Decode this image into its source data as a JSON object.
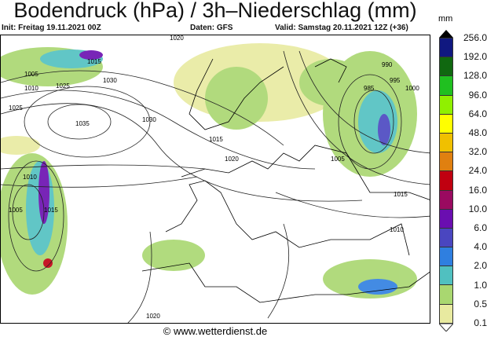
{
  "header": {
    "title": "Bodendruck (hPa) / 3h–Niederschlag (mm)",
    "init": "Init: Freitag 19.11.2021 00Z",
    "source": "Daten: GFS",
    "valid": "Valid: Samstag 20.11.2021 12Z (+36)"
  },
  "legend": {
    "unit": "mm",
    "labels": [
      "256.0",
      "192.0",
      "128.0",
      "96.0",
      "64.0",
      "48.0",
      "32.0",
      "24.0",
      "16.0",
      "10.0",
      "6.0",
      "4.0",
      "2.0",
      "1.0",
      "0.5",
      "0.1"
    ],
    "colors_top_to_bottom": [
      "#101880",
      "#106810",
      "#20c020",
      "#90f000",
      "#ffff00",
      "#f0c000",
      "#e08010",
      "#c00010",
      "#9a0a60",
      "#6a0eb0",
      "#4a46c0",
      "#2f7fe0",
      "#50c0c0",
      "#a9d770",
      "#e8eaa0"
    ]
  },
  "isobars": [
    "1020",
    "1005",
    "1010",
    "1015",
    "1025",
    "1030",
    "1035",
    "1030",
    "1025",
    "1010",
    "1005",
    "1015",
    "1020",
    "1015",
    "995",
    "985",
    "990",
    "1000",
    "1005",
    "1010",
    "1015",
    "1020"
  ],
  "footer": "© www.wetterdienst.de"
}
